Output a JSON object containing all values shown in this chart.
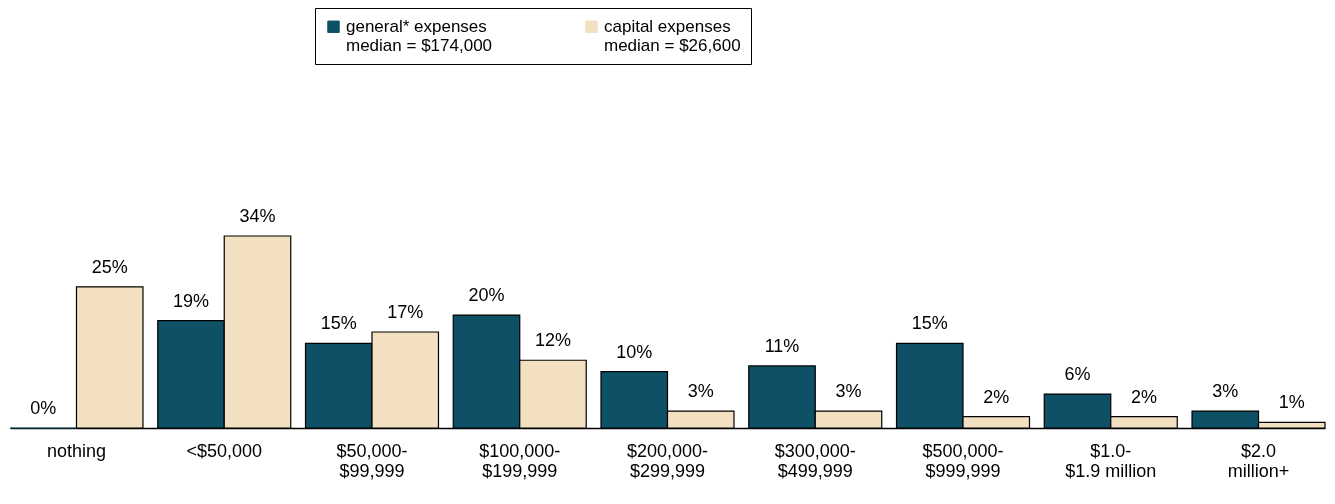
{
  "chart_data": {
    "type": "bar",
    "categories": [
      "nothing",
      "<$50,000",
      "$50,000-\n$99,999",
      "$100,000-\n$199,999",
      "$200,000-\n$299,999",
      "$300,000-\n$499,999",
      "$500,000-\n$999,999",
      "$1.0-\n$1.9 million",
      "$2.0\nmillion+"
    ],
    "series": [
      {
        "name": "general* expenses\nmedian = $174,000",
        "color": "#0e5066",
        "values": [
          0,
          19,
          15,
          20,
          10,
          11,
          15,
          6,
          3
        ],
        "value_labels": [
          "0%",
          "19%",
          "15%",
          "20%",
          "10%",
          "11%",
          "15%",
          "6%",
          "3%"
        ]
      },
      {
        "name": "capital expenses\nmedian = $26,600",
        "color": "#f2e0c0",
        "values": [
          25,
          34,
          17,
          12,
          3,
          3,
          2,
          2,
          1
        ],
        "value_labels": [
          "25%",
          "34%",
          "17%",
          "12%",
          "3%",
          "3%",
          "2%",
          "2%",
          "1%"
        ]
      }
    ],
    "legend": "top",
    "grid": false
  }
}
